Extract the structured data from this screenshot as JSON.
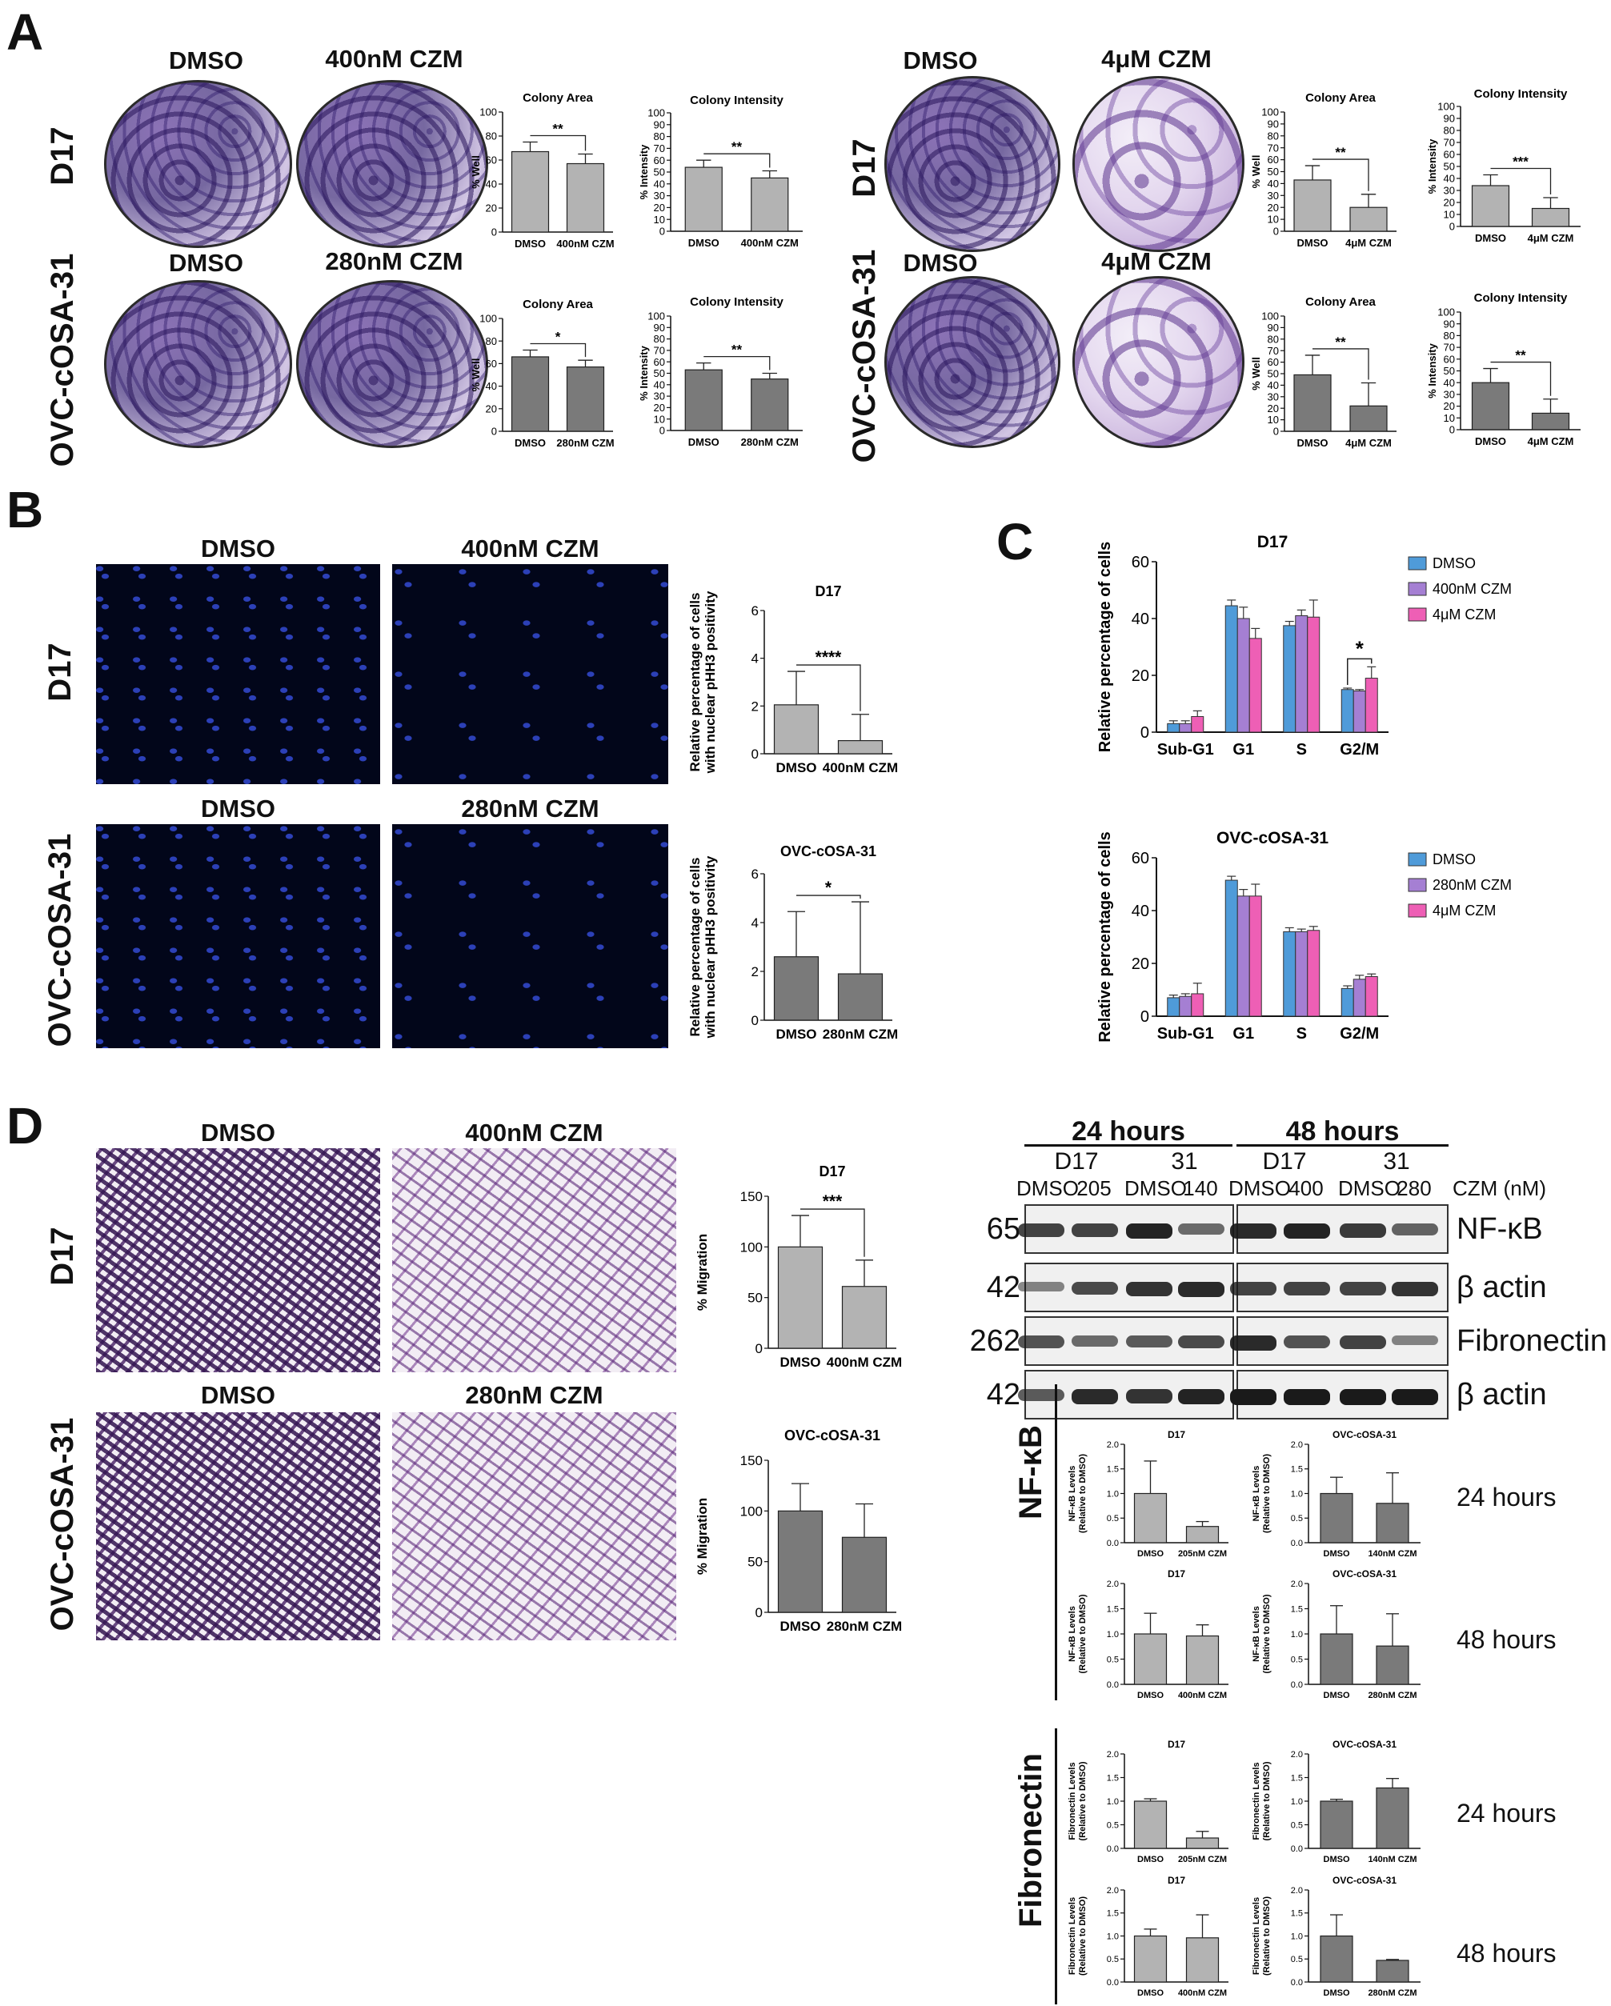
{
  "panels": {
    "a": "A",
    "b": "B",
    "c": "C",
    "d": "D"
  },
  "rows": {
    "d17": "D17",
    "ovc": "OVC-cOSA-31",
    "nfkb": "NF-κB",
    "fibronectin": "Fibronectin"
  },
  "conds": {
    "dmso": "DMSO",
    "c400": "400nM CZM",
    "c280": "280nM CZM",
    "c4u": "4μM CZM"
  },
  "blot": {
    "time24": "24 hours",
    "time48": "48 hours",
    "d17": "D17",
    "ovc": "31",
    "lanes": [
      "DMSO",
      "205",
      "DMSO",
      "140",
      "DMSO",
      "400",
      "DMSO",
      "280"
    ],
    "czm": "CZM (nM)",
    "proteins": [
      {
        "mw": "65",
        "name": "NF-κB"
      },
      {
        "mw": "42",
        "name": "β actin"
      },
      {
        "mw": "262",
        "name": "Fibronectin"
      },
      {
        "mw": "42",
        "name": "β actin"
      }
    ],
    "band_intensity": [
      [
        0.75,
        0.75,
        0.95,
        0.5,
        0.9,
        0.95,
        0.8,
        0.55
      ],
      [
        0.35,
        0.7,
        0.85,
        0.9,
        0.75,
        0.75,
        0.75,
        0.85
      ],
      [
        0.65,
        0.5,
        0.6,
        0.7,
        0.9,
        0.65,
        0.75,
        0.35
      ],
      [
        0.6,
        0.9,
        0.85,
        0.95,
        1.0,
        1.0,
        1.0,
        1.0
      ]
    ]
  },
  "times": {
    "t24": "24 hours",
    "t48": "48 hours"
  },
  "chart_data": [
    {
      "id": "colA1",
      "type": "bar",
      "title": "Colony Area",
      "ylabel": "% Well",
      "ylim": [
        0,
        100
      ],
      "yticks": [
        0,
        20,
        40,
        60,
        80,
        100
      ],
      "categories": [
        "DMSO",
        "400nM CZM"
      ],
      "values": [
        67,
        57
      ],
      "errors": [
        8,
        8
      ],
      "sig": "**",
      "color": "#b3b3b3"
    },
    {
      "id": "colI1",
      "type": "bar",
      "title": "Colony Intensity",
      "ylabel": "% Intensity",
      "ylim": [
        0,
        100
      ],
      "yticks": [
        0,
        10,
        20,
        30,
        40,
        50,
        60,
        70,
        80,
        90,
        100
      ],
      "categories": [
        "DMSO",
        "400nM CZM"
      ],
      "values": [
        54,
        45
      ],
      "errors": [
        6,
        6
      ],
      "sig": "**",
      "color": "#b3b3b3"
    },
    {
      "id": "colA2",
      "type": "bar",
      "title": "Colony Area",
      "ylabel": "% Well",
      "ylim": [
        0,
        100
      ],
      "yticks": [
        0,
        20,
        40,
        60,
        80,
        100
      ],
      "categories": [
        "DMSO",
        "280nM CZM"
      ],
      "values": [
        66,
        57
      ],
      "errors": [
        6,
        6
      ],
      "sig": "*",
      "color": "#7a7a7a"
    },
    {
      "id": "colI2",
      "type": "bar",
      "title": "Colony Intensity",
      "ylabel": "% Intensity",
      "ylim": [
        0,
        100
      ],
      "yticks": [
        0,
        10,
        20,
        30,
        40,
        50,
        60,
        70,
        80,
        90,
        100
      ],
      "categories": [
        "DMSO",
        "280nM CZM"
      ],
      "values": [
        53,
        45
      ],
      "errors": [
        6,
        5
      ],
      "sig": "**",
      "color": "#7a7a7a"
    },
    {
      "id": "colA3",
      "type": "bar",
      "title": "Colony Area",
      "ylabel": "% Well",
      "ylim": [
        0,
        100
      ],
      "yticks": [
        0,
        10,
        20,
        30,
        40,
        50,
        60,
        70,
        80,
        90,
        100
      ],
      "categories": [
        "DMSO",
        "4μM CZM"
      ],
      "values": [
        43,
        20
      ],
      "errors": [
        12,
        11
      ],
      "sig": "**",
      "color": "#b3b3b3"
    },
    {
      "id": "colI3",
      "type": "bar",
      "title": "Colony Intensity",
      "ylabel": "% Intensity",
      "ylim": [
        0,
        100
      ],
      "yticks": [
        0,
        10,
        20,
        30,
        40,
        50,
        60,
        70,
        80,
        90,
        100
      ],
      "categories": [
        "DMSO",
        "4μM CZM"
      ],
      "values": [
        34,
        15
      ],
      "errors": [
        9,
        9
      ],
      "sig": "***",
      "color": "#b3b3b3"
    },
    {
      "id": "colA4",
      "type": "bar",
      "title": "Colony Area",
      "ylabel": "% Well",
      "ylim": [
        0,
        100
      ],
      "yticks": [
        0,
        10,
        20,
        30,
        40,
        50,
        60,
        70,
        80,
        90,
        100
      ],
      "categories": [
        "DMSO",
        "4μM CZM"
      ],
      "values": [
        49,
        22
      ],
      "errors": [
        17,
        20
      ],
      "sig": "**",
      "color": "#7a7a7a"
    },
    {
      "id": "colI4",
      "type": "bar",
      "title": "Colony Intensity",
      "ylabel": "% Intensity",
      "ylim": [
        0,
        100
      ],
      "yticks": [
        0,
        10,
        20,
        30,
        40,
        50,
        60,
        70,
        80,
        90,
        100
      ],
      "categories": [
        "DMSO",
        "4μM CZM"
      ],
      "values": [
        40,
        14
      ],
      "errors": [
        12,
        12
      ],
      "sig": "**",
      "color": "#7a7a7a"
    },
    {
      "id": "phh1",
      "type": "bar",
      "title": "D17",
      "ylabel": "Relative percentage of cells with nuclear pHH3 positivity",
      "ylim": [
        0,
        6
      ],
      "yticks": [
        0,
        2,
        4,
        6
      ],
      "categories": [
        "DMSO",
        "400nM CZM"
      ],
      "values": [
        2.05,
        0.55
      ],
      "errors": [
        1.4,
        1.1
      ],
      "sig": "****",
      "color": "#b3b3b3"
    },
    {
      "id": "phh2",
      "type": "bar",
      "title": "OVC-cOSA-31",
      "ylabel": "Relative percentage of cells with nuclear pHH3 positivity",
      "ylim": [
        0,
        6
      ],
      "yticks": [
        0,
        2,
        4,
        6
      ],
      "categories": [
        "DMSO",
        "280nM CZM"
      ],
      "values": [
        2.6,
        1.9
      ],
      "errors": [
        1.85,
        2.95
      ],
      "sig": "*",
      "color": "#7a7a7a"
    },
    {
      "id": "cc1",
      "type": "bar",
      "title": "D17",
      "ylabel": "Relative percentage of cells",
      "ylim": [
        0,
        60
      ],
      "yticks": [
        0,
        20,
        40,
        60
      ],
      "categories": [
        "Sub-G1",
        "G1",
        "S",
        "G2/M"
      ],
      "series": [
        {
          "name": "DMSO",
          "color": "#4f9bd9",
          "values": [
            3,
            44.5,
            37.5,
            15
          ],
          "errors": [
            1,
            2,
            1.5,
            0.5
          ]
        },
        {
          "name": "400nM CZM",
          "color": "#a57fd3",
          "values": [
            3,
            40,
            41,
            14.5
          ],
          "errors": [
            1,
            4,
            2,
            0.5
          ]
        },
        {
          "name": "4μM CZM",
          "color": "#ee5fb5",
          "values": [
            5.5,
            33,
            40.5,
            19
          ],
          "errors": [
            2,
            3.5,
            6,
            4
          ]
        }
      ],
      "sig": "*"
    },
    {
      "id": "cc2",
      "type": "bar",
      "title": "OVC-cOSA-31",
      "ylabel": "Relative percentage of cells",
      "ylim": [
        0,
        60
      ],
      "yticks": [
        0,
        20,
        40,
        60
      ],
      "categories": [
        "Sub-G1",
        "G1",
        "S",
        "G2/M"
      ],
      "series": [
        {
          "name": "DMSO",
          "color": "#4f9bd9",
          "values": [
            7,
            51.5,
            32,
            10.5
          ],
          "errors": [
            1,
            1.5,
            1.5,
            1
          ]
        },
        {
          "name": "280nM CZM",
          "color": "#a57fd3",
          "values": [
            7.5,
            45.5,
            32,
            14
          ],
          "errors": [
            1,
            2.5,
            1,
            1.5
          ]
        },
        {
          "name": "4μM CZM",
          "color": "#ee5fb5",
          "values": [
            8.5,
            45.5,
            32.5,
            15
          ],
          "errors": [
            4,
            4.5,
            1.5,
            1
          ]
        }
      ]
    },
    {
      "id": "mig1",
      "type": "bar",
      "title": "D17",
      "ylabel": "% Migration",
      "ylim": [
        0,
        150
      ],
      "yticks": [
        0,
        50,
        100,
        150
      ],
      "categories": [
        "DMSO",
        "400nM CZM"
      ],
      "values": [
        100,
        61
      ],
      "errors": [
        31,
        26
      ],
      "sig": "***",
      "color": "#b3b3b3"
    },
    {
      "id": "mig2",
      "type": "bar",
      "title": "OVC-cOSA-31",
      "ylabel": "% Migration",
      "ylim": [
        0,
        150
      ],
      "yticks": [
        0,
        50,
        100,
        150
      ],
      "categories": [
        "DMSO",
        "280nM CZM"
      ],
      "values": [
        100,
        74
      ],
      "errors": [
        27,
        33
      ],
      "color": "#7a7a7a"
    },
    {
      "id": "nf1",
      "type": "bar",
      "title": "D17",
      "ylabel": "NF-κB Levels (Relative to DMSO)",
      "ylim": [
        0,
        2
      ],
      "yticks": [
        0,
        0.5,
        1.0,
        1.5,
        2.0
      ],
      "categories": [
        "DMSO",
        "205nM CZM"
      ],
      "values": [
        1.0,
        0.33
      ],
      "errors": [
        0.66,
        0.1
      ],
      "color": "#b3b3b3"
    },
    {
      "id": "nf2",
      "type": "bar",
      "title": "OVC-cOSA-31",
      "ylabel": "NF-κB Levels (Relative to DMSO)",
      "ylim": [
        0,
        2
      ],
      "yticks": [
        0,
        0.5,
        1.0,
        1.5,
        2.0
      ],
      "categories": [
        "DMSO",
        "140nM CZM"
      ],
      "values": [
        1.0,
        0.8
      ],
      "errors": [
        0.33,
        0.62
      ],
      "color": "#7a7a7a"
    },
    {
      "id": "nf3",
      "type": "bar",
      "title": "D17",
      "ylabel": "NF-κB Levels (Relative to DMSO)",
      "ylim": [
        0,
        2
      ],
      "yticks": [
        0,
        0.5,
        1.0,
        1.5,
        2.0
      ],
      "categories": [
        "DMSO",
        "400nM CZM"
      ],
      "values": [
        1.0,
        0.96
      ],
      "errors": [
        0.41,
        0.22
      ],
      "color": "#b3b3b3"
    },
    {
      "id": "nf4",
      "type": "bar",
      "title": "OVC-cOSA-31",
      "ylabel": "NF-κB Levels (Relative to DMSO)",
      "ylim": [
        0,
        2
      ],
      "yticks": [
        0,
        0.5,
        1.0,
        1.5,
        2.0
      ],
      "categories": [
        "DMSO",
        "280nM CZM"
      ],
      "values": [
        1.0,
        0.76
      ],
      "errors": [
        0.56,
        0.64
      ],
      "color": "#7a7a7a"
    },
    {
      "id": "fn1",
      "type": "bar",
      "title": "D17",
      "ylabel": "Fibronectin Levels (Relative to DMSO)",
      "ylim": [
        0,
        2
      ],
      "yticks": [
        0,
        0.5,
        1.0,
        1.5,
        2.0
      ],
      "categories": [
        "DMSO",
        "205nM CZM"
      ],
      "values": [
        1.0,
        0.22
      ],
      "errors": [
        0.05,
        0.14
      ],
      "color": "#b3b3b3"
    },
    {
      "id": "fn2",
      "type": "bar",
      "title": "OVC-cOSA-31",
      "ylabel": "Fibronectin Levels (Relative to DMSO)",
      "ylim": [
        0,
        2
      ],
      "yticks": [
        0,
        0.5,
        1.0,
        1.5,
        2.0
      ],
      "categories": [
        "DMSO",
        "140nM CZM"
      ],
      "values": [
        1.0,
        1.28
      ],
      "errors": [
        0.04,
        0.2
      ],
      "color": "#7a7a7a"
    },
    {
      "id": "fn3",
      "type": "bar",
      "title": "D17",
      "ylabel": "Fibronectin Levels (Relative to DMSO)",
      "ylim": [
        0,
        2
      ],
      "yticks": [
        0,
        0.5,
        1.0,
        1.5,
        2.0
      ],
      "categories": [
        "DMSO",
        "400nM CZM"
      ],
      "values": [
        1.0,
        0.96
      ],
      "errors": [
        0.15,
        0.5
      ],
      "color": "#b3b3b3"
    },
    {
      "id": "fn4",
      "type": "bar",
      "title": "OVC-cOSA-31",
      "ylabel": "Fibronectin Levels (Relative to DMSO)",
      "ylim": [
        0,
        2
      ],
      "yticks": [
        0,
        0.5,
        1.0,
        1.5,
        2.0
      ],
      "categories": [
        "DMSO",
        "280nM CZM"
      ],
      "values": [
        1.0,
        0.47
      ],
      "errors": [
        0.46,
        0.02
      ],
      "color": "#7a7a7a"
    }
  ]
}
